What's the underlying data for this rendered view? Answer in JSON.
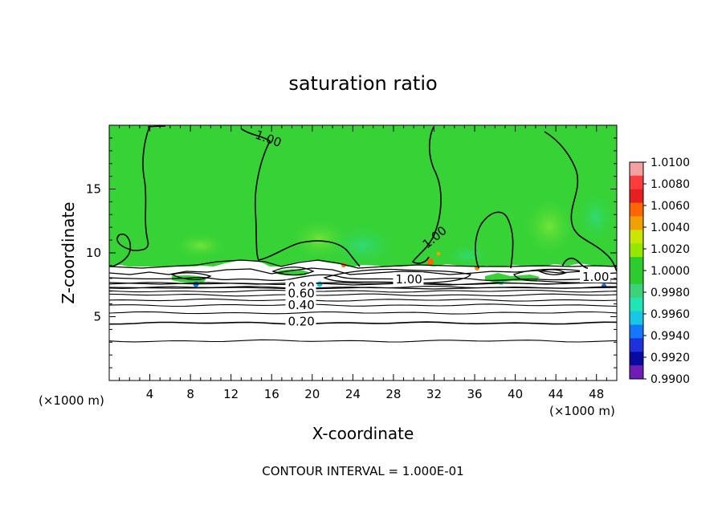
{
  "chart_data": {
    "type": "heatmap",
    "title": "saturation ratio",
    "xlabel": "X-coordinate",
    "ylabel": "Z-coordinate",
    "x_units": "(×1000 m)",
    "x_units_right": "(×1000 m)",
    "footer": "CONTOUR INTERVAL = 1.000E-01",
    "xlim": [
      0,
      50
    ],
    "ylim": [
      0,
      20
    ],
    "x_ticks": [
      4,
      8,
      12,
      16,
      20,
      24,
      28,
      32,
      36,
      40,
      44,
      48
    ],
    "x_tick_labels": [
      "4",
      "8",
      "12",
      "16",
      "20",
      "24",
      "28",
      "32",
      "36",
      "40",
      "44",
      "48"
    ],
    "y_ticks": [
      5,
      10,
      15
    ],
    "y_tick_labels": [
      "5",
      "10",
      "15"
    ],
    "contour_interval": 0.1,
    "contour_labels": [
      {
        "text": "1.00",
        "x": 14.3,
        "y": 19.0
      },
      {
        "text": "1.00",
        "x": 31.3,
        "y": 10.3
      },
      {
        "text": "1.00",
        "x": 28.2,
        "y": 7.6
      },
      {
        "text": "1.00",
        "x": 46.6,
        "y": 7.8
      },
      {
        "text": "0.80",
        "x": 17.6,
        "y": 7.0
      },
      {
        "text": "0.60",
        "x": 17.6,
        "y": 6.5
      },
      {
        "text": "0.40",
        "x": 17.6,
        "y": 5.6
      },
      {
        "text": "0.20",
        "x": 17.6,
        "y": 4.3
      }
    ],
    "stable_contours": [
      {
        "level": 0.1,
        "z": 3.1
      },
      {
        "level": 0.2,
        "z": 4.5
      },
      {
        "level": 0.3,
        "z": 5.3
      },
      {
        "level": 0.4,
        "z": 5.9
      },
      {
        "level": 0.5,
        "z": 6.3
      },
      {
        "level": 0.6,
        "z": 6.7
      },
      {
        "level": 0.7,
        "z": 7.0
      },
      {
        "level": 0.8,
        "z": 7.3
      },
      {
        "level": 0.9,
        "z": 7.6
      }
    ],
    "colorbar": {
      "min": 0.99,
      "max": 1.01,
      "tick_labels": [
        "1.0100",
        "1.0080",
        "1.0060",
        "1.0040",
        "1.0020",
        "1.0000",
        "0.9980",
        "0.9960",
        "0.9940",
        "0.9920",
        "0.9900"
      ],
      "bands": [
        "#f5a0a0",
        "#ff3c3c",
        "#e62020",
        "#ff6600",
        "#f0a000",
        "#c8e600",
        "#96e600",
        "#2ccc2c",
        "#2ccc2c",
        "#3cd27a",
        "#1ee6b4",
        "#16c8e6",
        "#1478ff",
        "#1e32dc",
        "#0a0aa0",
        "#6e1eb4"
      ]
    },
    "regions": {
      "saturated_layer": {
        "value_approx": 1.0,
        "color": "#36d236",
        "z_range": [
          8.9,
          20
        ]
      },
      "subsaturated_layer": {
        "color": "#ffffff",
        "z_range": [
          0,
          8.9
        ]
      }
    },
    "grid": false,
    "legend": "right"
  }
}
